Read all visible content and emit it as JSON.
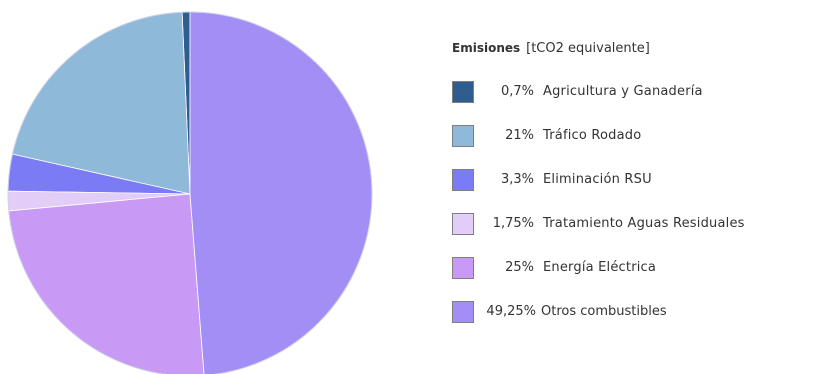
{
  "chart_data": {
    "type": "pie",
    "legend_title": "Emisiones",
    "legend_subtitle": "[tCO2 equivalente]",
    "legend_position": "right",
    "slices": [
      {
        "name": "Agricultura y Ganadería",
        "label": "0,7%",
        "value": 0.7,
        "color": "#2f5d8f"
      },
      {
        "name": "Tráfico Rodado",
        "label": "21%",
        "value": 21,
        "color": "#8fb9d8"
      },
      {
        "name": "Eliminación RSU",
        "label": "3,3%",
        "value": 3.3,
        "color": "#7b7bf5"
      },
      {
        "name": "Tratamiento Aguas Residuales",
        "label": "1,75%",
        "value": 1.75,
        "color": "#e2cdf8"
      },
      {
        "name": "Energía Eléctrica",
        "label": "25%",
        "value": 25,
        "color": "#c89af6"
      },
      {
        "name": "Otros combustibles",
        "label": "49,25%",
        "value": 49.25,
        "color": "#a38ef5"
      }
    ]
  }
}
